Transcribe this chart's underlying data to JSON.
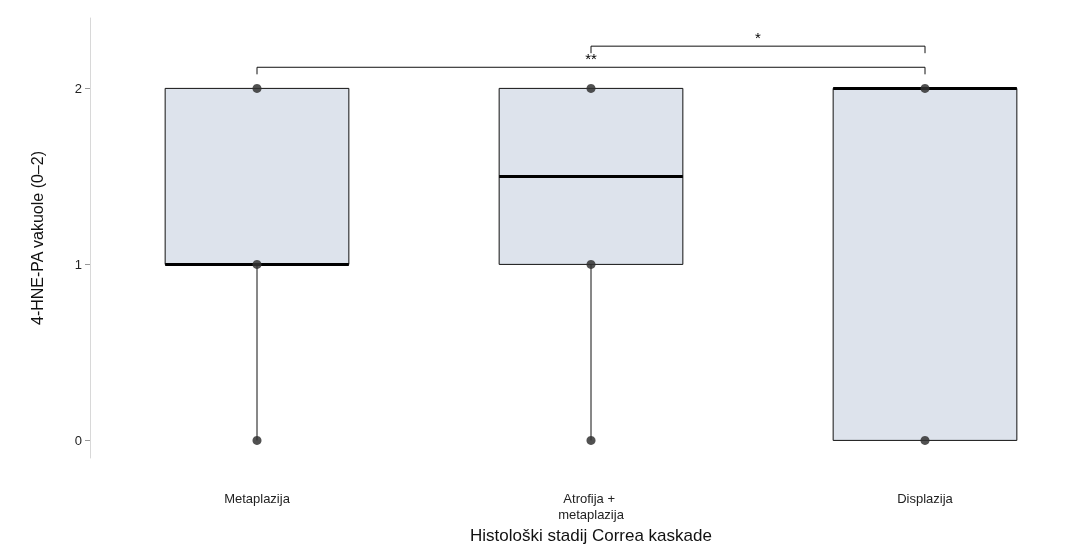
{
  "chart_data": {
    "type": "box",
    "xlabel": "Histološki stadij Correa kaskade",
    "ylabel": "4-HNE-PA vakuole (0–2)",
    "categories": [
      "Metaplazija",
      "Atrofija + metaplazija",
      "Displazija"
    ],
    "color": "#dde3ec",
    "boxes": [
      {
        "low": 0,
        "q1": 1,
        "median": 1,
        "q3": 2,
        "high": 2
      },
      {
        "low": 0,
        "q1": 1,
        "median": 1.5,
        "q3": 2,
        "high": 2
      },
      {
        "low": 0,
        "q1": 0,
        "median": 2,
        "q3": 2,
        "high": 2
      }
    ],
    "series": [
      {
        "type": "scatter",
        "color": "#333333",
        "x": [
          "Metaplazija",
          "Metaplazija",
          "Metaplazija",
          "Atrofija + metaplazija",
          "Atrofija + metaplazija",
          "Atrofija + metaplazija",
          "Displazija",
          "Displazija"
        ],
        "values": [
          0,
          1,
          2,
          0,
          1,
          2,
          0,
          2
        ]
      }
    ],
    "ylim": [
      -0.1,
      2.4
    ],
    "yticks": [
      0,
      1,
      2
    ],
    "grid": false,
    "annotations": [
      "*",
      "**"
    ]
  }
}
